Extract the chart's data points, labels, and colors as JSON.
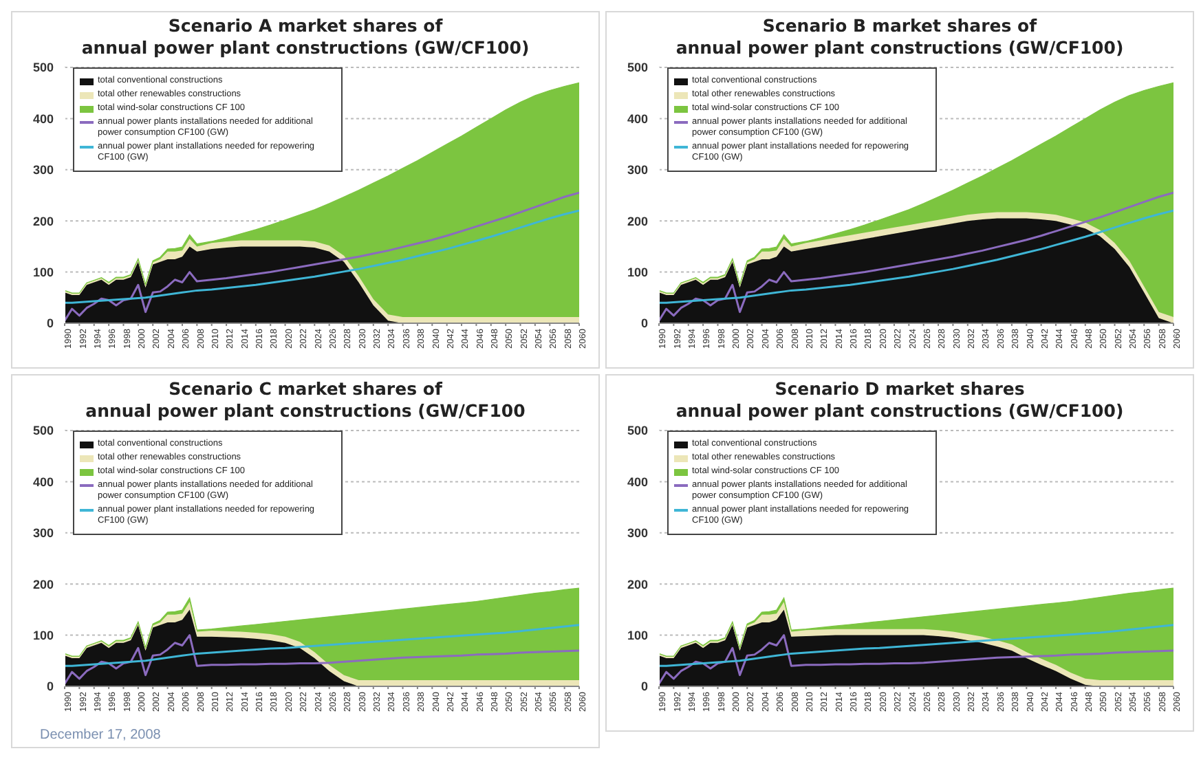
{
  "chart_data": [
    {
      "type": "area",
      "title": "Scenario A market shares of\nannual power plant constructions (GW/CF100)",
      "stacked": true,
      "grid": "y",
      "legend": "top left",
      "x": [
        1990,
        1991,
        1992,
        1993,
        1994,
        1995,
        1996,
        1997,
        1998,
        1999,
        2000,
        2001,
        2002,
        2003,
        2004,
        2005,
        2006,
        2007,
        2008,
        2010,
        2012,
        2014,
        2016,
        2018,
        2020,
        2022,
        2024,
        2026,
        2028,
        2030,
        2032,
        2034,
        2036,
        2038,
        2040,
        2042,
        2044,
        2046,
        2048,
        2050,
        2052,
        2054,
        2056,
        2058,
        2060
      ],
      "xlim": [
        1990,
        2060
      ],
      "xticks": [
        1990,
        1992,
        1994,
        1996,
        1998,
        2000,
        2002,
        2004,
        2006,
        2008,
        2010,
        2012,
        2014,
        2016,
        2018,
        2020,
        2022,
        2024,
        2026,
        2028,
        2030,
        2032,
        2034,
        2036,
        2038,
        2040,
        2042,
        2044,
        2046,
        2048,
        2050,
        2052,
        2054,
        2056,
        2058,
        2060
      ],
      "ylim": [
        0,
        500
      ],
      "yticks": [
        0,
        100,
        200,
        300,
        400,
        500
      ],
      "series": [
        {
          "name": "total conventional constructions",
          "color": "#111111",
          "values": [
            60,
            55,
            55,
            75,
            80,
            85,
            75,
            85,
            85,
            90,
            120,
            70,
            115,
            120,
            125,
            125,
            130,
            150,
            140,
            145,
            148,
            150,
            150,
            150,
            150,
            150,
            148,
            140,
            120,
            80,
            35,
            5,
            0,
            0,
            0,
            0,
            0,
            0,
            0,
            0,
            0,
            0,
            0,
            0,
            0
          ]
        },
        {
          "name": "total other renewables constructions",
          "color": "#ece6b8",
          "values": [
            3,
            3,
            3,
            3,
            3,
            3,
            3,
            3,
            3,
            3,
            3,
            3,
            4,
            5,
            15,
            15,
            12,
            15,
            10,
            12,
            12,
            12,
            12,
            12,
            12,
            12,
            12,
            12,
            12,
            12,
            12,
            12,
            12,
            12,
            12,
            12,
            12,
            12,
            12,
            12,
            12,
            12,
            12,
            12,
            12
          ]
        },
        {
          "name": "total wind-solar constructions CF 100",
          "color": "#7cc540",
          "values": [
            1,
            1,
            1,
            1,
            1,
            1,
            2,
            2,
            2,
            2,
            3,
            3,
            3,
            4,
            5,
            6,
            7,
            8,
            5,
            3,
            7,
            13,
            21,
            30,
            40,
            50,
            62,
            82,
            115,
            168,
            227,
            271,
            291,
            306,
            322,
            338,
            354,
            371,
            388,
            405,
            420,
            433,
            443,
            451,
            458
          ]
        },
        {
          "name": "annual power plants installations needed for additional power consumption CF100 (GW)",
          "type": "line",
          "color": "#8b6bbf",
          "values": [
            5,
            28,
            15,
            30,
            38,
            48,
            45,
            35,
            45,
            48,
            75,
            22,
            60,
            62,
            72,
            85,
            80,
            100,
            82,
            85,
            88,
            92,
            96,
            100,
            105,
            110,
            115,
            120,
            125,
            130,
            136,
            142,
            149,
            156,
            163,
            171,
            180,
            189,
            198,
            207,
            217,
            227,
            237,
            247,
            255
          ]
        },
        {
          "name": "annual power plant installations needed for repowering CF100 (GW)",
          "type": "line",
          "color": "#3fb6d6",
          "values": [
            40,
            40,
            41,
            42,
            43,
            44,
            45,
            46,
            47,
            48,
            49,
            50,
            52,
            54,
            56,
            58,
            60,
            62,
            64,
            66,
            69,
            72,
            75,
            79,
            83,
            87,
            91,
            96,
            101,
            106,
            112,
            118,
            124,
            131,
            138,
            145,
            153,
            161,
            169,
            178,
            187,
            196,
            205,
            213,
            220
          ]
        }
      ]
    },
    {
      "type": "area",
      "title": "Scenario B market shares of\nannual power plant constructions (GW/CF100)",
      "stacked": true,
      "grid": "y",
      "legend": "top left",
      "x": [
        1990,
        1991,
        1992,
        1993,
        1994,
        1995,
        1996,
        1997,
        1998,
        1999,
        2000,
        2001,
        2002,
        2003,
        2004,
        2005,
        2006,
        2007,
        2008,
        2010,
        2012,
        2014,
        2016,
        2018,
        2020,
        2022,
        2024,
        2026,
        2028,
        2030,
        2032,
        2034,
        2036,
        2038,
        2040,
        2042,
        2044,
        2046,
        2048,
        2050,
        2052,
        2054,
        2056,
        2058,
        2060
      ],
      "xlim": [
        1990,
        2060
      ],
      "xticks": [
        1990,
        1992,
        1994,
        1996,
        1998,
        2000,
        2002,
        2004,
        2006,
        2008,
        2010,
        2012,
        2014,
        2016,
        2018,
        2020,
        2022,
        2024,
        2026,
        2028,
        2030,
        2032,
        2034,
        2036,
        2038,
        2040,
        2042,
        2044,
        2046,
        2048,
        2050,
        2052,
        2054,
        2056,
        2058,
        2060
      ],
      "ylim": [
        0,
        500
      ],
      "yticks": [
        0,
        100,
        200,
        300,
        400,
        500
      ],
      "series": [
        {
          "name": "total conventional constructions",
          "color": "#111111",
          "values": [
            60,
            55,
            55,
            75,
            80,
            85,
            75,
            85,
            85,
            90,
            120,
            70,
            115,
            120,
            125,
            125,
            130,
            150,
            140,
            145,
            150,
            155,
            160,
            165,
            170,
            175,
            180,
            185,
            190,
            195,
            200,
            203,
            205,
            205,
            205,
            203,
            200,
            193,
            185,
            170,
            145,
            110,
            60,
            10,
            0
          ]
        },
        {
          "name": "total other renewables constructions",
          "color": "#ece6b8",
          "values": [
            3,
            3,
            3,
            3,
            3,
            3,
            3,
            3,
            3,
            3,
            3,
            3,
            4,
            5,
            15,
            15,
            12,
            15,
            10,
            12,
            12,
            12,
            12,
            12,
            12,
            12,
            12,
            12,
            12,
            12,
            12,
            12,
            12,
            12,
            12,
            12,
            12,
            12,
            12,
            12,
            12,
            12,
            12,
            12,
            12
          ]
        },
        {
          "name": "total wind-solar constructions CF 100",
          "color": "#7cc540",
          "values": [
            1,
            1,
            1,
            1,
            1,
            1,
            2,
            2,
            2,
            2,
            3,
            3,
            3,
            4,
            5,
            6,
            7,
            8,
            5,
            3,
            5,
            8,
            11,
            15,
            20,
            25,
            30,
            37,
            45,
            53,
            62,
            73,
            86,
            101,
            117,
            135,
            154,
            178,
            203,
            235,
            275,
            323,
            383,
            441,
            458
          ]
        },
        {
          "name": "annual power plants installations needed for additional power consumption CF100 (GW)",
          "type": "line",
          "color": "#8b6bbf",
          "values": [
            5,
            28,
            15,
            30,
            38,
            48,
            45,
            35,
            45,
            48,
            75,
            22,
            60,
            62,
            72,
            85,
            80,
            100,
            82,
            85,
            88,
            92,
            96,
            100,
            105,
            110,
            115,
            120,
            125,
            130,
            136,
            142,
            149,
            156,
            163,
            171,
            180,
            189,
            198,
            207,
            217,
            227,
            237,
            247,
            255
          ]
        },
        {
          "name": "annual power plant installations needed for repowering CF100 (GW)",
          "type": "line",
          "color": "#3fb6d6",
          "values": [
            40,
            40,
            41,
            42,
            43,
            44,
            45,
            46,
            47,
            48,
            49,
            50,
            52,
            54,
            56,
            58,
            60,
            62,
            64,
            66,
            69,
            72,
            75,
            79,
            83,
            87,
            91,
            96,
            101,
            106,
            112,
            118,
            124,
            131,
            138,
            145,
            153,
            161,
            169,
            178,
            187,
            196,
            205,
            213,
            220
          ]
        }
      ]
    },
    {
      "type": "area",
      "title": "Scenario C market shares of\nannual power plant constructions (GW/CF100",
      "stacked": true,
      "grid": "y",
      "legend": "top left",
      "annotations": [
        "December 17, 2008"
      ],
      "x": [
        1990,
        1991,
        1992,
        1993,
        1994,
        1995,
        1996,
        1997,
        1998,
        1999,
        2000,
        2001,
        2002,
        2003,
        2004,
        2005,
        2006,
        2007,
        2008,
        2010,
        2012,
        2014,
        2016,
        2018,
        2020,
        2022,
        2024,
        2026,
        2028,
        2030,
        2032,
        2034,
        2036,
        2038,
        2040,
        2042,
        2044,
        2046,
        2048,
        2050,
        2052,
        2054,
        2056,
        2058,
        2060
      ],
      "xlim": [
        1990,
        2060
      ],
      "xticks": [
        1990,
        1992,
        1994,
        1996,
        1998,
        2000,
        2002,
        2004,
        2006,
        2008,
        2010,
        2012,
        2014,
        2016,
        2018,
        2020,
        2022,
        2024,
        2026,
        2028,
        2030,
        2032,
        2034,
        2036,
        2038,
        2040,
        2042,
        2044,
        2046,
        2048,
        2050,
        2052,
        2054,
        2056,
        2058,
        2060
      ],
      "ylim": [
        0,
        500
      ],
      "yticks": [
        0,
        100,
        200,
        300,
        400,
        500
      ],
      "series": [
        {
          "name": "total conventional constructions",
          "color": "#111111",
          "values": [
            60,
            55,
            55,
            75,
            80,
            85,
            75,
            85,
            85,
            90,
            120,
            70,
            115,
            120,
            125,
            125,
            130,
            150,
            97,
            97,
            96,
            95,
            93,
            90,
            85,
            75,
            55,
            30,
            10,
            0,
            0,
            0,
            0,
            0,
            0,
            0,
            0,
            0,
            0,
            0,
            0,
            0,
            0,
            0,
            0
          ]
        },
        {
          "name": "total other renewables constructions",
          "color": "#ece6b8",
          "values": [
            3,
            3,
            3,
            3,
            3,
            3,
            3,
            3,
            3,
            3,
            3,
            3,
            4,
            5,
            15,
            15,
            12,
            15,
            10,
            12,
            12,
            12,
            12,
            12,
            12,
            12,
            12,
            12,
            12,
            12,
            12,
            12,
            12,
            12,
            12,
            12,
            12,
            12,
            12,
            12,
            12,
            12,
            12,
            12,
            12
          ]
        },
        {
          "name": "total wind-solar constructions CF 100",
          "color": "#7cc540",
          "values": [
            1,
            1,
            1,
            1,
            1,
            1,
            2,
            2,
            2,
            2,
            3,
            3,
            3,
            4,
            5,
            6,
            7,
            8,
            3,
            3,
            7,
            11,
            16,
            22,
            30,
            43,
            66,
            94,
            117,
            130,
            133,
            136,
            139,
            142,
            145,
            148,
            151,
            154,
            158,
            162,
            166,
            170,
            173,
            177,
            180
          ]
        },
        {
          "name": "annual power plants installations needed for additional power consumption CF100 (GW)",
          "type": "line",
          "color": "#8b6bbf",
          "values": [
            5,
            28,
            15,
            30,
            38,
            48,
            45,
            35,
            45,
            48,
            75,
            22,
            60,
            62,
            72,
            85,
            80,
            100,
            40,
            42,
            42,
            43,
            43,
            44,
            44,
            45,
            45,
            46,
            48,
            50,
            52,
            54,
            56,
            57,
            58,
            59,
            60,
            62,
            63,
            64,
            66,
            67,
            68,
            69,
            70
          ]
        },
        {
          "name": "annual power plant installations needed for repowering CF100 (GW)",
          "type": "line",
          "color": "#3fb6d6",
          "values": [
            40,
            40,
            41,
            42,
            43,
            44,
            45,
            46,
            47,
            48,
            49,
            50,
            52,
            54,
            56,
            58,
            60,
            62,
            64,
            66,
            68,
            70,
            72,
            74,
            75,
            77,
            79,
            81,
            83,
            85,
            87,
            89,
            91,
            93,
            95,
            97,
            99,
            101,
            103,
            105,
            108,
            111,
            114,
            117,
            120
          ]
        }
      ]
    },
    {
      "type": "area",
      "title": "Scenario D market shares\nannual power plant constructions (GW/CF100)",
      "stacked": true,
      "grid": "y",
      "legend": "top left",
      "x": [
        1990,
        1991,
        1992,
        1993,
        1994,
        1995,
        1996,
        1997,
        1998,
        1999,
        2000,
        2001,
        2002,
        2003,
        2004,
        2005,
        2006,
        2007,
        2008,
        2010,
        2012,
        2014,
        2016,
        2018,
        2020,
        2022,
        2024,
        2026,
        2028,
        2030,
        2032,
        2034,
        2036,
        2038,
        2040,
        2042,
        2044,
        2046,
        2048,
        2050,
        2052,
        2054,
        2056,
        2058,
        2060
      ],
      "xlim": [
        1990,
        2060
      ],
      "xticks": [
        1990,
        1992,
        1994,
        1996,
        1998,
        2000,
        2002,
        2004,
        2006,
        2008,
        2010,
        2012,
        2014,
        2016,
        2018,
        2020,
        2022,
        2024,
        2026,
        2028,
        2030,
        2032,
        2034,
        2036,
        2038,
        2040,
        2042,
        2044,
        2046,
        2048,
        2050,
        2052,
        2054,
        2056,
        2058,
        2060
      ],
      "ylim": [
        0,
        500
      ],
      "yticks": [
        0,
        100,
        200,
        300,
        400,
        500
      ],
      "series": [
        {
          "name": "total conventional constructions",
          "color": "#111111",
          "values": [
            60,
            55,
            55,
            75,
            80,
            85,
            75,
            85,
            85,
            90,
            120,
            70,
            115,
            120,
            125,
            125,
            130,
            150,
            97,
            98,
            99,
            100,
            100,
            100,
            100,
            100,
            100,
            100,
            98,
            95,
            90,
            85,
            78,
            70,
            55,
            42,
            30,
            15,
            3,
            0,
            0,
            0,
            0,
            0,
            0
          ]
        },
        {
          "name": "total other renewables constructions",
          "color": "#ece6b8",
          "values": [
            3,
            3,
            3,
            3,
            3,
            3,
            3,
            3,
            3,
            3,
            3,
            3,
            4,
            5,
            15,
            15,
            12,
            15,
            10,
            12,
            12,
            12,
            12,
            12,
            12,
            12,
            12,
            12,
            12,
            12,
            12,
            12,
            12,
            12,
            12,
            12,
            12,
            12,
            12,
            12,
            12,
            12,
            12,
            12,
            12
          ]
        },
        {
          "name": "total wind-solar constructions CF 100",
          "color": "#7cc540",
          "values": [
            1,
            1,
            1,
            1,
            1,
            1,
            2,
            2,
            2,
            2,
            3,
            3,
            3,
            4,
            5,
            6,
            7,
            8,
            3,
            2,
            4,
            6,
            9,
            12,
            15,
            18,
            21,
            24,
            29,
            35,
            43,
            51,
            61,
            72,
            90,
            106,
            121,
            139,
            155,
            162,
            166,
            170,
            173,
            177,
            180
          ]
        },
        {
          "name": "annual power plants installations needed for additional power consumption CF100 (GW)",
          "type": "line",
          "color": "#8b6bbf",
          "values": [
            5,
            28,
            15,
            30,
            38,
            48,
            45,
            35,
            45,
            48,
            75,
            22,
            60,
            62,
            72,
            85,
            80,
            100,
            40,
            42,
            42,
            43,
            43,
            44,
            44,
            45,
            45,
            46,
            48,
            50,
            52,
            54,
            56,
            57,
            58,
            59,
            60,
            62,
            63,
            64,
            66,
            67,
            68,
            69,
            70
          ]
        },
        {
          "name": "annual power plant installations needed for repowering CF100 (GW)",
          "type": "line",
          "color": "#3fb6d6",
          "values": [
            40,
            40,
            41,
            42,
            43,
            44,
            45,
            46,
            47,
            48,
            49,
            50,
            52,
            54,
            56,
            58,
            60,
            62,
            64,
            66,
            68,
            70,
            72,
            74,
            75,
            77,
            79,
            81,
            83,
            85,
            87,
            89,
            91,
            93,
            95,
            97,
            99,
            101,
            103,
            105,
            108,
            111,
            114,
            117,
            120
          ]
        }
      ]
    }
  ]
}
